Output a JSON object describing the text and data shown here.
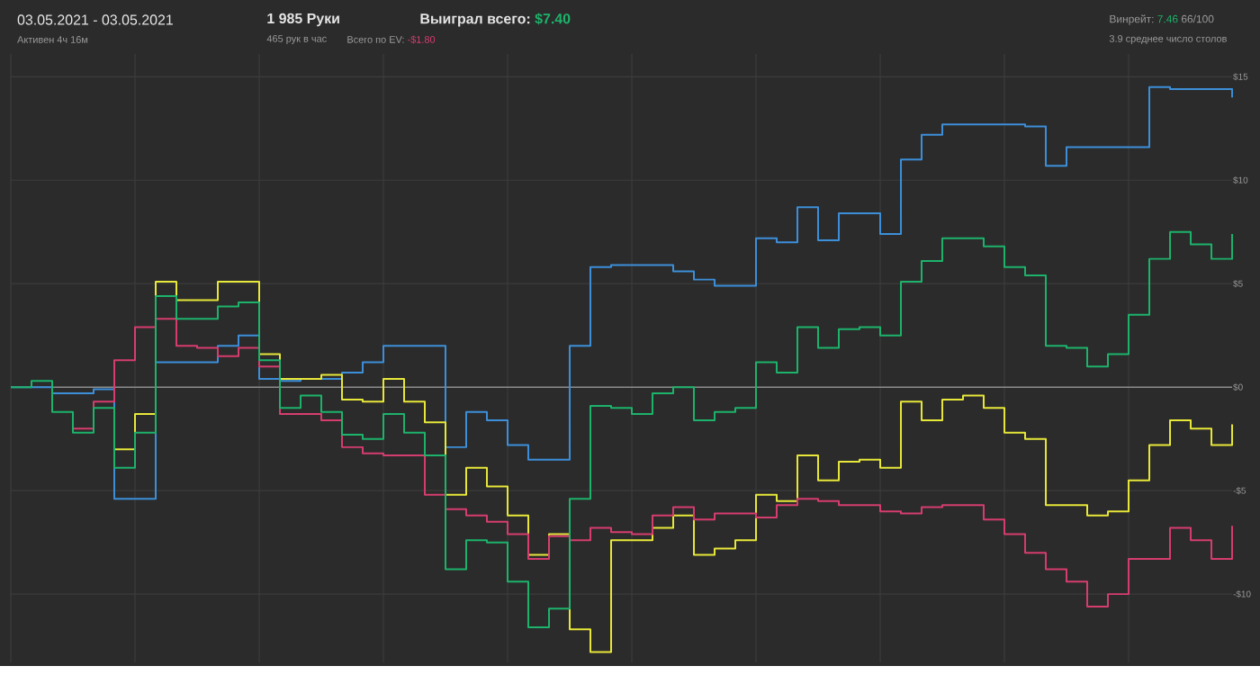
{
  "chart_data": {
    "type": "step",
    "title": "03.05.2021 - 03.05.2021",
    "subtitle": "Активен 4ч 16м",
    "annotations": [
      "1 985 Руки",
      "465 рук в час",
      "Выиграл всего:",
      "$7.40",
      "Всего по EV:",
      "-$1.80",
      "Винрейт:",
      "7.46",
      "66/100",
      "3.9 среднее число столов"
    ],
    "categories": [
      null,
      null,
      null,
      null,
      null,
      null,
      null,
      null,
      null,
      null,
      null,
      null,
      null,
      null,
      null,
      null,
      null,
      null,
      null,
      null,
      null,
      null,
      null,
      null,
      null,
      null,
      null,
      null,
      null,
      null,
      null,
      null,
      null,
      null,
      null,
      null,
      null,
      null,
      null,
      null,
      null,
      null,
      null,
      null,
      null,
      null,
      null,
      null,
      null,
      null,
      null,
      null,
      null,
      null,
      null,
      null,
      null,
      null,
      null,
      null
    ],
    "series": [
      {
        "color": "#3d8fd9",
        "values": [
          0,
          0,
          -0.3,
          -0.3,
          -0.1,
          -5.4,
          -5.4,
          1.2,
          1.2,
          1.2,
          2.0,
          2.5,
          0.4,
          0.3,
          0.4,
          0.4,
          0.7,
          1.2,
          2.0,
          2.0,
          2.0,
          -2.9,
          -1.2,
          -1.6,
          -2.8,
          -3.5,
          -3.5,
          2.0,
          5.8,
          5.9,
          5.9,
          5.9,
          5.6,
          5.2,
          4.9,
          4.9,
          7.2,
          7.0,
          8.7,
          7.1,
          8.4,
          8.4,
          7.4,
          11.0,
          12.2,
          12.7,
          12.7,
          12.7,
          12.7,
          12.6,
          10.7,
          11.6,
          11.6,
          11.6,
          11.6,
          14.5,
          14.4,
          14.4,
          14.4,
          14.0
        ]
      },
      {
        "color": "#e8e83a",
        "values": [
          null,
          null,
          null,
          null,
          null,
          -3.0,
          -1.3,
          5.1,
          4.2,
          4.2,
          5.1,
          5.1,
          1.6,
          0.4,
          0.4,
          0.6,
          -0.6,
          -0.7,
          0.4,
          -0.7,
          -1.7,
          -5.2,
          -3.9,
          -4.8,
          -6.2,
          -8.1,
          -7.1,
          -11.7,
          -12.8,
          -7.4,
          -7.4,
          -6.8,
          -6.2,
          -8.1,
          -7.8,
          -7.4,
          -5.2,
          -5.5,
          -3.3,
          -4.5,
          -3.6,
          -3.5,
          -3.9,
          -0.7,
          -1.6,
          -0.6,
          -0.4,
          -1.0,
          -2.2,
          -2.5,
          -5.7,
          -5.7,
          -6.2,
          -6.0,
          -4.5,
          -2.8,
          -1.6,
          -2.0,
          -2.8,
          -1.8
        ]
      },
      {
        "color": "#d63d6e",
        "values": [
          null,
          null,
          null,
          -2.0,
          -0.7,
          1.3,
          2.9,
          3.3,
          2.0,
          1.9,
          1.5,
          1.9,
          1.0,
          -1.3,
          -1.3,
          -1.6,
          -2.9,
          -3.2,
          -3.3,
          -3.3,
          -5.2,
          -5.9,
          -6.2,
          -6.5,
          -7.1,
          -8.3,
          -7.2,
          -7.4,
          -6.8,
          -7.0,
          -7.1,
          -6.2,
          -5.8,
          -6.4,
          -6.1,
          -6.1,
          -6.3,
          -5.7,
          -5.4,
          -5.5,
          -5.7,
          -5.7,
          -6.0,
          -6.1,
          -5.8,
          -5.7,
          -5.7,
          -6.4,
          -7.1,
          -8.0,
          -8.8,
          -9.4,
          -10.6,
          -10.0,
          -8.3,
          -8.3,
          -6.8,
          -7.4,
          -8.3,
          -6.7
        ]
      },
      {
        "color": "#1db36b",
        "values": [
          0,
          0.3,
          -1.2,
          -2.2,
          -1.0,
          -3.9,
          -2.2,
          4.4,
          3.3,
          3.3,
          3.9,
          4.1,
          1.3,
          -1.0,
          -0.4,
          -1.2,
          -2.3,
          -2.5,
          -1.3,
          -2.2,
          -3.3,
          -8.8,
          -7.4,
          -7.5,
          -9.4,
          -11.6,
          -10.7,
          -5.4,
          -0.9,
          -1.0,
          -1.3,
          -0.3,
          0,
          -1.6,
          -1.2,
          -1.0,
          1.2,
          0.7,
          2.9,
          1.9,
          2.8,
          2.9,
          2.5,
          5.1,
          6.1,
          7.2,
          7.2,
          6.8,
          5.8,
          5.4,
          2.0,
          1.9,
          1.0,
          1.6,
          3.5,
          6.2,
          7.5,
          6.9,
          6.2,
          7.4
        ]
      }
    ],
    "ylim": [
      -13.3,
      16.1
    ],
    "yticks": [
      {
        "value": 15,
        "label": "$15"
      },
      {
        "value": 10,
        "label": "$10"
      },
      {
        "value": 5,
        "label": "$5"
      },
      {
        "value": 0,
        "label": "$0"
      },
      {
        "value": -5,
        "label": "-$5"
      },
      {
        "value": -10,
        "label": "-$10"
      }
    ],
    "ref_lines": [
      {
        "axis": "y",
        "value": 0,
        "color": "#8a8a8a"
      }
    ],
    "grid": true,
    "tick_labels": "y"
  }
}
